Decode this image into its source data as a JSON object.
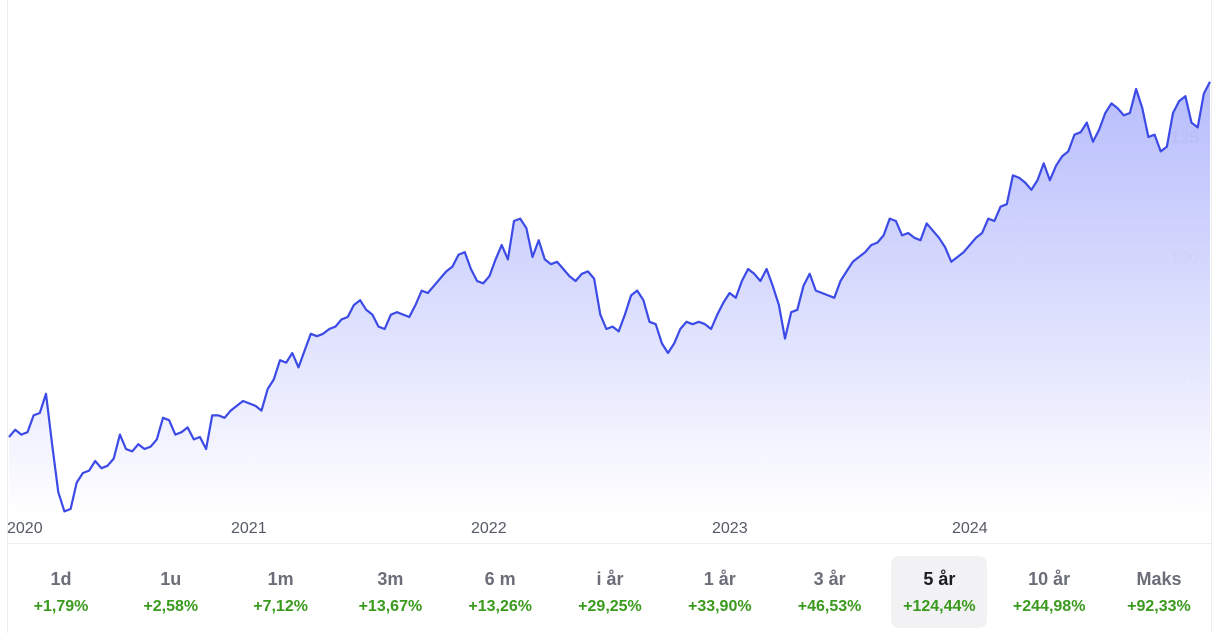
{
  "chart_data": {
    "type": "area",
    "title": "",
    "xlabel": "",
    "ylabel": "",
    "ylim": [
      45,
      138
    ],
    "y_ticks": [
      50,
      75,
      100,
      125
    ],
    "x_tick_labels": [
      "2020",
      "2021",
      "2022",
      "2023",
      "2024"
    ],
    "grid": false,
    "line_color": "#3c4ae6",
    "fill_color_top": "#b3b9fb",
    "fill_color_bottom": "#ffffff",
    "series": [
      {
        "values": [
          62.5,
          64,
          63,
          63.5,
          67,
          67.5,
          71.5,
          61,
          51,
          47,
          47.5,
          53,
          55,
          55.5,
          57.5,
          56,
          56.5,
          58,
          63,
          60,
          59.5,
          61,
          60,
          60.5,
          62,
          66.5,
          66,
          63,
          63.5,
          64.5,
          62,
          62.5,
          60,
          67,
          67,
          66.5,
          68,
          69,
          70,
          69.5,
          69,
          68,
          72.5,
          74.5,
          78.5,
          78,
          80,
          77,
          80.5,
          84,
          83.5,
          84,
          85,
          85.5,
          87,
          87.5,
          90,
          91,
          89,
          88,
          85.5,
          85,
          88,
          88.5,
          88,
          87.5,
          90,
          93,
          92.5,
          94,
          95.5,
          97,
          98,
          100.5,
          101,
          97.5,
          95,
          94.5,
          96,
          99.5,
          102.5,
          99.5,
          107.5,
          108,
          106,
          100,
          103.5,
          99.5,
          98.5,
          99,
          97.5,
          96,
          95,
          96.5,
          97,
          95.5,
          88,
          85,
          85.5,
          84.5,
          88,
          92,
          93,
          91,
          86.5,
          86,
          82,
          80,
          82,
          85,
          86.5,
          86,
          86.5,
          86,
          85,
          88,
          90.5,
          92.5,
          91.5,
          95,
          97.5,
          96.5,
          95,
          97.5,
          94,
          90,
          83,
          88.5,
          89,
          94,
          96.5,
          93,
          92.5,
          92,
          91.5,
          95,
          97,
          99,
          100,
          101,
          102.5,
          103,
          104.5,
          108,
          107.5,
          104.5,
          105,
          104,
          103.5,
          107,
          105.5,
          104,
          102,
          99,
          100,
          101,
          102.5,
          104,
          105,
          108,
          107.5,
          110.5,
          111,
          117,
          116.5,
          115.5,
          114,
          116,
          119.5,
          116,
          119,
          121,
          122,
          125.5,
          126,
          128,
          124,
          126.5,
          130,
          132,
          131,
          129.5,
          130,
          135,
          131,
          125,
          125.5,
          122,
          123,
          130,
          132.5,
          133.5,
          128,
          127,
          134,
          136.5
        ]
      }
    ]
  },
  "periods": [
    {
      "label": "1d",
      "change": "+1,79%"
    },
    {
      "label": "1u",
      "change": "+2,58%"
    },
    {
      "label": "1m",
      "change": "+7,12%"
    },
    {
      "label": "3m",
      "change": "+13,67%"
    },
    {
      "label": "6 m",
      "change": "+13,26%"
    },
    {
      "label": "i år",
      "change": "+29,25%"
    },
    {
      "label": "1 år",
      "change": "+33,90%"
    },
    {
      "label": "3 år",
      "change": "+46,53%"
    },
    {
      "label": "5 år",
      "change": "+124,44%",
      "selected": true
    },
    {
      "label": "10 år",
      "change": "+244,98%"
    },
    {
      "label": "Maks",
      "change": "+92,33%"
    }
  ]
}
